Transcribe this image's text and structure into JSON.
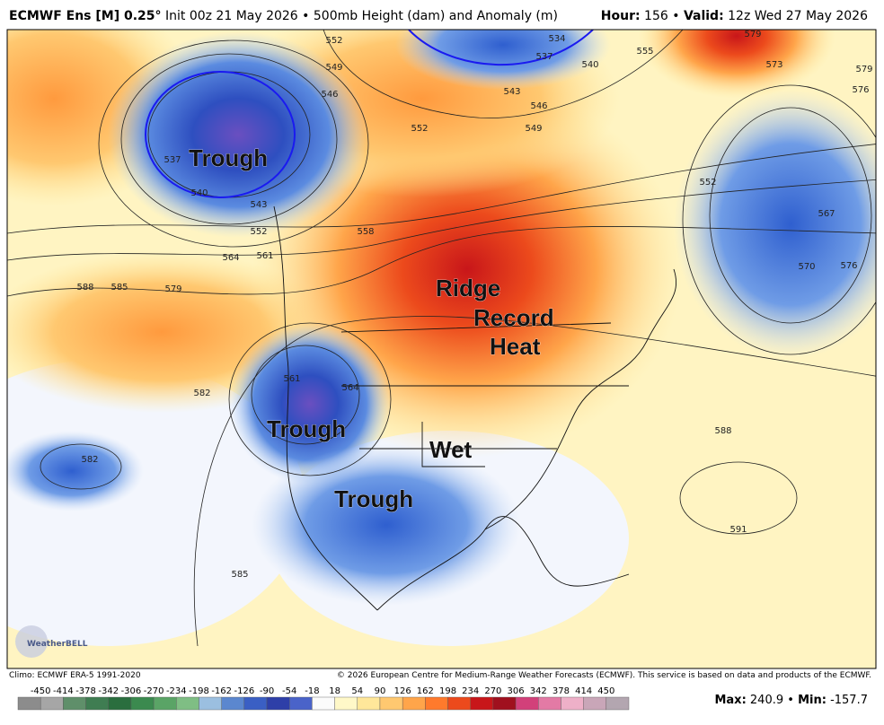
{
  "header": {
    "model": "ECMWF Ens [M] 0.25°",
    "description": "Init 00z 21 May 2026 • 500mb Height (dam) and Anomaly (m)",
    "hour_label": "Hour:",
    "hour": 156,
    "separator": "•",
    "valid_label": "Valid:",
    "valid": "12z Wed 27 May 2026"
  },
  "map": {
    "annotations": [
      "Trough",
      "Ridge",
      "Record",
      "Heat",
      "Trough",
      "Wet",
      "Trough"
    ],
    "contour_labels": [
      552,
      549,
      546,
      537,
      540,
      543,
      552,
      564,
      561,
      558,
      588,
      585,
      579,
      582,
      582,
      561,
      564,
      585,
      588,
      591,
      552,
      567,
      570,
      576,
      573,
      579,
      579,
      576,
      555,
      549,
      546,
      543,
      540,
      537,
      534,
      552
    ],
    "logo": "WeatherBELL"
  },
  "footer": {
    "climo": "Climo: ECMWF ERA-5 1991-2020",
    "copyright": "© 2026 European Centre for Medium-Range Weather Forecasts (ECMWF). This service is based on data and products of the ECMWF.",
    "max_label": "Max:",
    "max": 240.9,
    "min_label": "Min:",
    "min": -157.7,
    "separator": "•"
  },
  "colorbar": {
    "ticks": [
      -450,
      -414,
      -378,
      -342,
      -306,
      -270,
      -234,
      -198,
      -162,
      -126,
      -90,
      -54,
      -18,
      18,
      54,
      90,
      126,
      162,
      198,
      234,
      270,
      306,
      342,
      378,
      414,
      450
    ],
    "colors": [
      "#8c8c8c",
      "#a6a6a6",
      "#5f8f6a",
      "#3f7d52",
      "#2a6e3e",
      "#3b8a4f",
      "#5aa466",
      "#7fbe84",
      "#9bbfe0",
      "#5b87cf",
      "#3a5fc4",
      "#2e3fa8",
      "#4a63c9",
      "#fbfbfb",
      "#fff8c8",
      "#ffe79a",
      "#ffc870",
      "#ffa54a",
      "#ff7a2c",
      "#ec4a1c",
      "#c8161a",
      "#a0101e",
      "#d2407a",
      "#e37aa5",
      "#eeb0c8",
      "#c9a6b8",
      "#b3a6b0"
    ]
  }
}
